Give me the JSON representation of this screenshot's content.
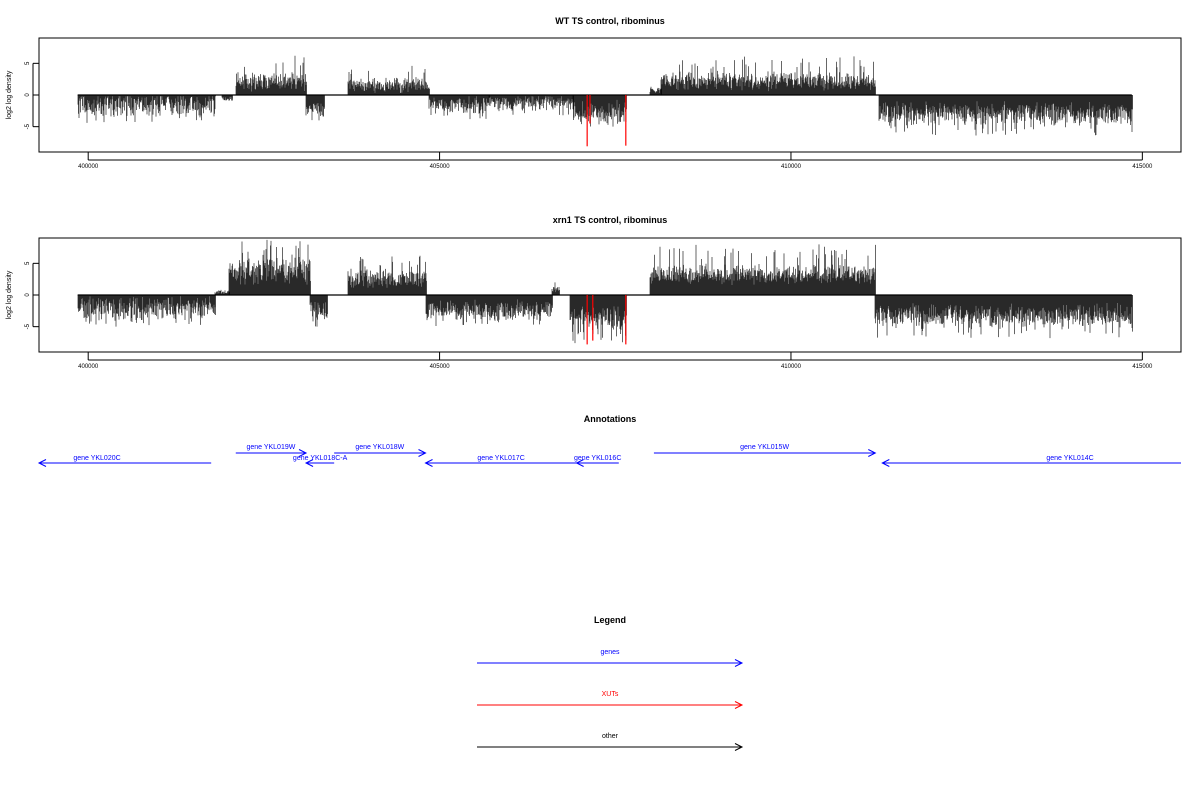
{
  "chart_data": [
    {
      "type": "bar",
      "title": "WT TS control, ribominus",
      "ylabel": "log2 log density",
      "xlabel": "",
      "xlim": [
        399300,
        415550
      ],
      "ylim": [
        -9,
        9
      ],
      "x_ticks": [
        400000,
        405000,
        410000,
        415000
      ],
      "x_tick_labels": [
        "400000",
        "405000",
        "410000",
        "415000"
      ],
      "y_ticks": [
        5,
        0,
        -5
      ],
      "y_tick_labels": [
        "5",
        "0",
        "-5"
      ],
      "baseline": {
        "from": 399850,
        "to": 414850,
        "y": 0
      },
      "segments": [
        {
          "from": 399850,
          "to": 401800,
          "mean": -1.5,
          "amp": 1.6,
          "peak": -4.4
        },
        {
          "from": 401900,
          "to": 402050,
          "mean": -0.6,
          "amp": 0.3,
          "peak": -0.9
        },
        {
          "from": 402100,
          "to": 403100,
          "mean": 2.2,
          "amp": 1.3,
          "peak": 6.2
        },
        {
          "from": 403100,
          "to": 403350,
          "mean": -2.0,
          "amp": 1.3,
          "peak": -4.0
        },
        {
          "from": 403700,
          "to": 404850,
          "mean": 1.6,
          "amp": 1.0,
          "peak": 4.6
        },
        {
          "from": 404850,
          "to": 405700,
          "mean": -1.5,
          "amp": 1.2,
          "peak": -3.8
        },
        {
          "from": 405700,
          "to": 406900,
          "mean": -1.2,
          "amp": 1.0,
          "peak": -3.2
        },
        {
          "from": 406900,
          "to": 407650,
          "mean": -2.8,
          "amp": 1.5,
          "peak": -5.0
        },
        {
          "from": 408000,
          "to": 408150,
          "mean": 0.8,
          "amp": 0.4,
          "peak": 1.3
        },
        {
          "from": 408150,
          "to": 411200,
          "mean": 2.2,
          "amp": 1.2,
          "peak": 6.1
        },
        {
          "from": 411250,
          "to": 414850,
          "mean": -3.0,
          "amp": 1.5,
          "peak": -6.4
        }
      ],
      "highlights": [
        {
          "x": 407100,
          "y": -8.1,
          "color": "#ff0000"
        },
        {
          "x": 407140,
          "y": -4.5,
          "color": "#ff0000"
        },
        {
          "x": 407650,
          "y": -8.0,
          "color": "#ff0000"
        }
      ]
    },
    {
      "type": "bar",
      "title": "xrn1 TS control, ribominus",
      "ylabel": "log2 log density",
      "xlabel": "",
      "xlim": [
        399300,
        415550
      ],
      "ylim": [
        -9,
        9
      ],
      "x_ticks": [
        400000,
        405000,
        410000,
        415000
      ],
      "x_tick_labels": [
        "400000",
        "405000",
        "410000",
        "415000"
      ],
      "y_ticks": [
        5,
        0,
        -5
      ],
      "y_tick_labels": [
        "5",
        "0",
        "-5"
      ],
      "baseline": {
        "from": 399850,
        "to": 414850,
        "y": 0
      },
      "segments": [
        {
          "from": 399850,
          "to": 401800,
          "mean": -2.0,
          "amp": 1.5,
          "peak": -5.0
        },
        {
          "from": 401800,
          "to": 402000,
          "mean": 0.4,
          "amp": 0.3,
          "peak": 0.8
        },
        {
          "from": 402000,
          "to": 403150,
          "mean": 3.8,
          "amp": 2.0,
          "peak": 8.7
        },
        {
          "from": 403150,
          "to": 403400,
          "mean": -2.5,
          "amp": 1.5,
          "peak": -5.0
        },
        {
          "from": 403700,
          "to": 404800,
          "mean": 2.6,
          "amp": 1.3,
          "peak": 6.2
        },
        {
          "from": 404800,
          "to": 406600,
          "mean": -2.5,
          "amp": 1.4,
          "peak": -4.9
        },
        {
          "from": 406600,
          "to": 406700,
          "mean": 1.0,
          "amp": 0.5,
          "peak": 2.0
        },
        {
          "from": 406850,
          "to": 407650,
          "mean": -4.0,
          "amp": 1.8,
          "peak": -7.6
        },
        {
          "from": 408000,
          "to": 411200,
          "mean": 3.2,
          "amp": 1.3,
          "peak": 8.0
        },
        {
          "from": 411200,
          "to": 414850,
          "mean": -3.3,
          "amp": 1.5,
          "peak": -6.8
        }
      ],
      "highlights": [
        {
          "x": 407100,
          "y": -7.8,
          "color": "#ff0000"
        },
        {
          "x": 407180,
          "y": -7.2,
          "color": "#ff0000"
        },
        {
          "x": 407650,
          "y": -7.8,
          "color": "#ff0000"
        }
      ]
    }
  ],
  "annotations": {
    "title": "Annotations",
    "color": "#0000ff",
    "features": [
      {
        "label": "gene YKL020C",
        "from": 399300,
        "to": 401750,
        "strand": "-"
      },
      {
        "label": "gene YKL019W",
        "from": 402100,
        "to": 403100,
        "strand": "+"
      },
      {
        "label": "gene YKL018C-A",
        "from": 403100,
        "to": 403500,
        "strand": "-"
      },
      {
        "label": "gene YKL018W",
        "from": 403500,
        "to": 404800,
        "strand": "+"
      },
      {
        "label": "gene YKL017C",
        "from": 404800,
        "to": 406950,
        "strand": "-"
      },
      {
        "label": "gene YKL016C",
        "from": 406950,
        "to": 407550,
        "strand": "-"
      },
      {
        "label": "gene YKL015W",
        "from": 408050,
        "to": 411200,
        "strand": "+"
      },
      {
        "label": "gene YKL014C",
        "from": 411300,
        "to": 415550,
        "strand": "-"
      }
    ]
  },
  "legend": {
    "title": "Legend",
    "items": [
      {
        "label": "genes",
        "color": "#0000ff"
      },
      {
        "label": "XUTs",
        "color": "#ff0000"
      },
      {
        "label": "other",
        "color": "#000000"
      }
    ]
  }
}
